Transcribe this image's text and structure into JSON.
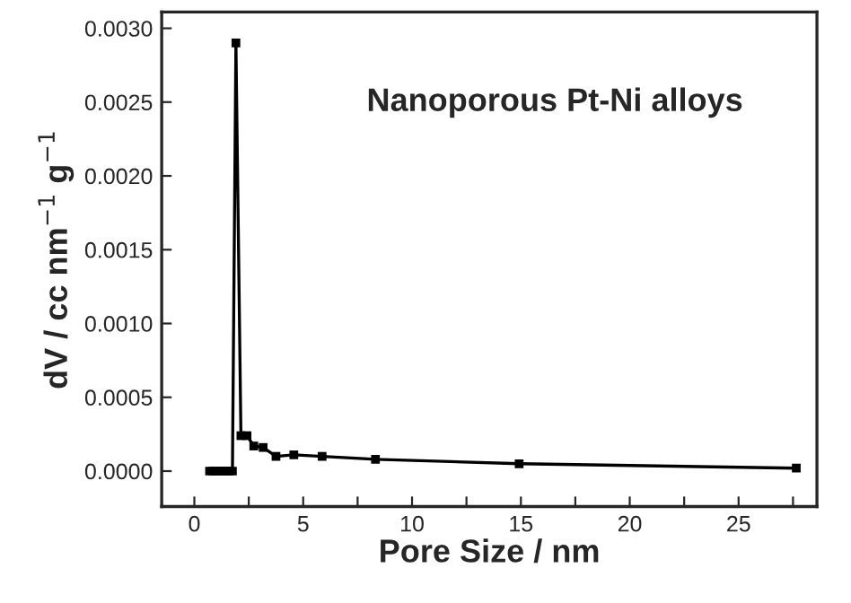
{
  "chart_data": {
    "type": "line",
    "xlabel": "Pore Size / nm",
    "ylabel": "dV / cc nm$^{−1}$ g$^{−1}$",
    "annotations": [
      "Nanoporous Pt-Ni alloys"
    ],
    "x": [
      0.7,
      0.85,
      1.0,
      1.15,
      1.3,
      1.45,
      1.6,
      1.75,
      1.91,
      2.14,
      2.42,
      2.73,
      3.16,
      3.75,
      4.57,
      5.87,
      8.32,
      14.92,
      27.65
    ],
    "series": [
      {
        "color": "#000000",
        "values": [
          0,
          0,
          0,
          0,
          0,
          0,
          0,
          0,
          0.0029,
          0.00024,
          0.00024,
          0.00017,
          0.00016,
          0.0001,
          0.00011,
          0.0001,
          8e-05,
          5e-05,
          2e-05
        ]
      }
    ],
    "marker": "square",
    "xlim": [
      -1.5,
      28.6
    ],
    "ylim": [
      -0.00024,
      0.00311
    ],
    "xticks": [
      0,
      {
        "value": 2.5,
        "label": null
      },
      5,
      {
        "value": 7.5,
        "label": null
      },
      10,
      {
        "value": 12.5,
        "label": null
      },
      15,
      {
        "value": 17.5,
        "label": null
      },
      20,
      {
        "value": 22.5,
        "label": null
      },
      25,
      {
        "value": 27.5,
        "label": null
      }
    ],
    "yticks": [
      {
        "value": 0,
        "label": "0.0000"
      },
      {
        "value": 0.0005,
        "label": "0.0005"
      },
      {
        "value": 0.001,
        "label": "0.0010"
      },
      {
        "value": 0.0015,
        "label": "0.0015"
      },
      {
        "value": 0.002,
        "label": "0.0020"
      },
      {
        "value": 0.0025,
        "label": "0.0025"
      },
      {
        "value": 0.003,
        "label": "0.0030"
      }
    ],
    "grid": false
  }
}
